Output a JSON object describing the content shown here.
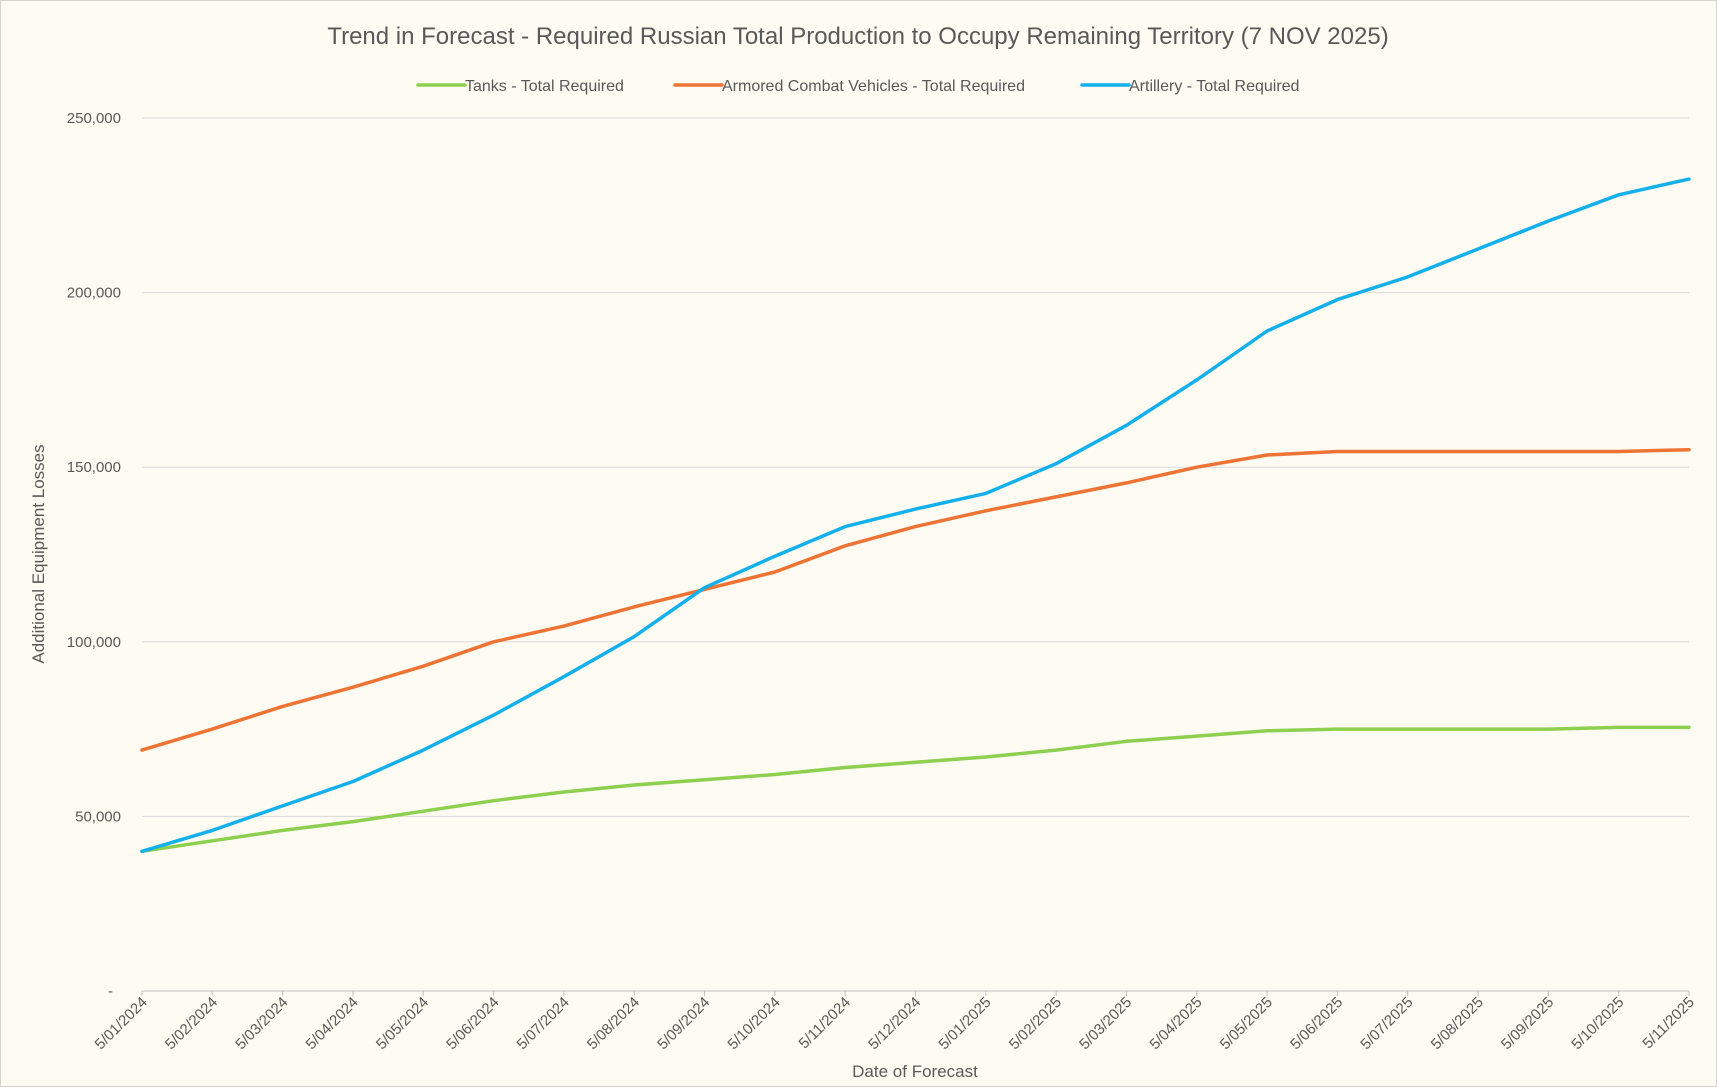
{
  "chart_data": {
    "type": "line",
    "title": "Trend in Forecast - Required Russian Total Production to Occupy Remaining Territory (7 NOV 2025)",
    "xlabel": "Date of Forecast",
    "ylabel": "Additional Equipment Losses",
    "ylim": [
      0,
      250000
    ],
    "y_ticks": [
      {
        "value": 0,
        "label": "-"
      },
      {
        "value": 50000,
        "label": "50,000"
      },
      {
        "value": 100000,
        "label": "100,000"
      },
      {
        "value": 150000,
        "label": "150,000"
      },
      {
        "value": 200000,
        "label": "200,000"
      },
      {
        "value": 250000,
        "label": "250,000"
      }
    ],
    "x_ticks": [
      "5/01/2024",
      "5/02/2024",
      "5/03/2024",
      "5/04/2024",
      "5/05/2024",
      "5/06/2024",
      "5/07/2024",
      "5/08/2024",
      "5/09/2024",
      "5/10/2024",
      "5/11/2024",
      "5/12/2024",
      "5/01/2025",
      "5/02/2025",
      "5/03/2025",
      "5/04/2025",
      "5/05/2025",
      "5/06/2025",
      "5/07/2025",
      "5/08/2025",
      "5/09/2025",
      "5/10/2025",
      "5/11/2025"
    ],
    "grid": "horizontal",
    "legend_position": "top",
    "series": [
      {
        "name": "Tanks - Total Required",
        "color": "#8dcf4f",
        "points": [
          [
            "5/01/2024",
            40000
          ],
          [
            "5/02/2024",
            43000
          ],
          [
            "5/03/2024",
            46000
          ],
          [
            "5/04/2024",
            48500
          ],
          [
            "5/05/2024",
            51500
          ],
          [
            "5/06/2024",
            54500
          ],
          [
            "5/07/2024",
            57000
          ],
          [
            "5/08/2024",
            59000
          ],
          [
            "5/09/2024",
            60500
          ],
          [
            "5/10/2024",
            62000
          ],
          [
            "5/11/2024",
            64000
          ],
          [
            "5/12/2024",
            65500
          ],
          [
            "5/01/2025",
            67000
          ],
          [
            "5/02/2025",
            69000
          ],
          [
            "5/03/2025",
            71500
          ],
          [
            "5/04/2025",
            73000
          ],
          [
            "5/05/2025",
            74500
          ],
          [
            "5/06/2025",
            75000
          ],
          [
            "5/07/2025",
            75000
          ],
          [
            "5/08/2025",
            75000
          ],
          [
            "5/09/2025",
            75000
          ],
          [
            "5/10/2025",
            75500
          ],
          [
            "5/11/2025",
            75500
          ]
        ]
      },
      {
        "name": "Armored Combat Vehicles - Total Required",
        "color": "#ed7435",
        "points": [
          [
            "5/01/2024",
            69000
          ],
          [
            "5/02/2024",
            75000
          ],
          [
            "5/03/2024",
            81500
          ],
          [
            "5/04/2024",
            87000
          ],
          [
            "5/05/2024",
            93000
          ],
          [
            "5/06/2024",
            100000
          ],
          [
            "5/07/2024",
            104500
          ],
          [
            "5/08/2024",
            110000
          ],
          [
            "5/09/2024",
            115000
          ],
          [
            "5/10/2024",
            120000
          ],
          [
            "5/11/2024",
            127500
          ],
          [
            "5/12/2024",
            133000
          ],
          [
            "5/01/2025",
            137500
          ],
          [
            "5/02/2025",
            141500
          ],
          [
            "5/03/2025",
            145500
          ],
          [
            "5/04/2025",
            150000
          ],
          [
            "5/05/2025",
            153500
          ],
          [
            "5/06/2025",
            154500
          ],
          [
            "5/07/2025",
            154500
          ],
          [
            "5/08/2025",
            154500
          ],
          [
            "5/09/2025",
            154500
          ],
          [
            "5/10/2025",
            154500
          ],
          [
            "5/11/2025",
            155000
          ]
        ]
      },
      {
        "name": "Artillery - Total Required",
        "color": "#14b0ec",
        "points": [
          [
            "5/01/2024",
            40000
          ],
          [
            "5/02/2024",
            46000
          ],
          [
            "5/03/2024",
            53000
          ],
          [
            "5/04/2024",
            60000
          ],
          [
            "5/05/2024",
            69000
          ],
          [
            "5/06/2024",
            79000
          ],
          [
            "5/07/2024",
            90000
          ],
          [
            "5/08/2024",
            101500
          ],
          [
            "5/09/2024",
            115500
          ],
          [
            "5/10/2024",
            124500
          ],
          [
            "5/11/2024",
            133000
          ],
          [
            "5/12/2024",
            138000
          ],
          [
            "5/01/2025",
            142500
          ],
          [
            "5/02/2025",
            151000
          ],
          [
            "5/03/2025",
            162000
          ],
          [
            "5/04/2025",
            175000
          ],
          [
            "5/05/2025",
            189000
          ],
          [
            "5/06/2025",
            198000
          ],
          [
            "5/07/2025",
            204500
          ],
          [
            "5/08/2025",
            212500
          ],
          [
            "5/09/2025",
            220500
          ],
          [
            "5/10/2025",
            228000
          ],
          [
            "5/11/2025",
            232500
          ]
        ]
      }
    ]
  }
}
